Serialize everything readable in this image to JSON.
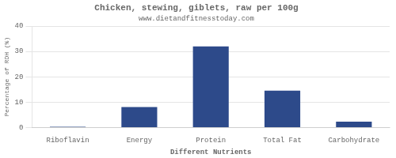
{
  "chart_data": {
    "type": "bar",
    "title": "Chicken, stewing, giblets, raw per 100g",
    "subtitle": "www.dietandfitnesstoday.com",
    "xlabel": "Different Nutrients",
    "ylabel": "Percentage of RDH (%)",
    "categories": [
      "Riboflavin",
      "Energy",
      "Protein",
      "Total Fat",
      "Carbohydrate"
    ],
    "values": [
      0.3,
      8.1,
      32.0,
      14.5,
      2.3
    ],
    "color": "#2d4a8a",
    "ylim": [
      0,
      40
    ],
    "yticks": [
      0,
      10,
      20,
      30,
      40
    ],
    "grid": true
  }
}
